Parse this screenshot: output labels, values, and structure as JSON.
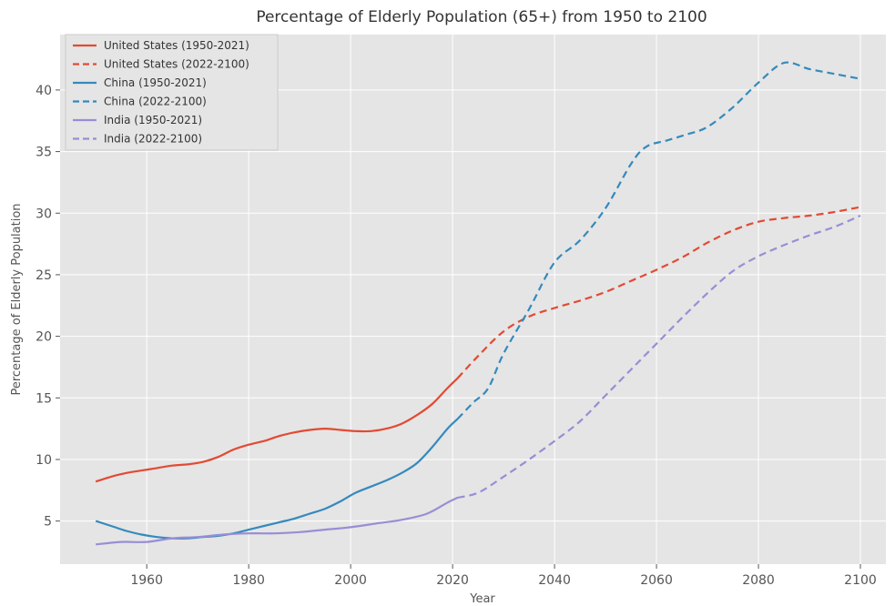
{
  "chart_data": {
    "type": "line",
    "title": "Percentage of Elderly Population (65+) from 1950 to 2100",
    "xlabel": "Year",
    "ylabel": "Percentage of Elderly Population",
    "xlim": [
      1943,
      2105
    ],
    "ylim": [
      1.5,
      44.5
    ],
    "xticks": [
      1960,
      1980,
      2000,
      2020,
      2040,
      2060,
      2080,
      2100
    ],
    "yticks": [
      5,
      10,
      15,
      20,
      25,
      30,
      35,
      40
    ],
    "grid": true,
    "legend_position": "top-left",
    "background": "#e5e5e5",
    "series": [
      {
        "name": "United States (1950-2021)",
        "color": "#e24a33",
        "style": "solid",
        "x": [
          1950,
          1953,
          1956,
          1959,
          1962,
          1965,
          1968,
          1971,
          1974,
          1977,
          1980,
          1983,
          1986,
          1989,
          1992,
          1995,
          1998,
          2001,
          2004,
          2007,
          2010,
          2013,
          2016,
          2019,
          2021
        ],
        "y": [
          8.2,
          8.6,
          8.9,
          9.1,
          9.3,
          9.5,
          9.6,
          9.8,
          10.2,
          10.8,
          11.2,
          11.5,
          11.9,
          12.2,
          12.4,
          12.5,
          12.4,
          12.3,
          12.3,
          12.5,
          12.9,
          13.6,
          14.5,
          15.8,
          16.6
        ]
      },
      {
        "name": "United States (2022-2100)",
        "color": "#e24a33",
        "style": "dashed",
        "x": [
          2021,
          2025,
          2030,
          2035,
          2040,
          2045,
          2050,
          2055,
          2060,
          2065,
          2070,
          2075,
          2080,
          2085,
          2090,
          2095,
          2100
        ],
        "y": [
          16.6,
          18.4,
          20.4,
          21.6,
          22.3,
          22.9,
          23.6,
          24.5,
          25.4,
          26.4,
          27.6,
          28.6,
          29.3,
          29.6,
          29.8,
          30.1,
          30.5
        ]
      },
      {
        "name": "China (1950-2021)",
        "color": "#348abd",
        "style": "solid",
        "x": [
          1950,
          1953,
          1956,
          1959,
          1962,
          1965,
          1968,
          1971,
          1974,
          1977,
          1980,
          1983,
          1986,
          1989,
          1992,
          1995,
          1998,
          2001,
          2004,
          2007,
          2010,
          2013,
          2016,
          2019,
          2021
        ],
        "y": [
          5.0,
          4.6,
          4.2,
          3.9,
          3.7,
          3.6,
          3.6,
          3.7,
          3.8,
          4.0,
          4.3,
          4.6,
          4.9,
          5.2,
          5.6,
          6.0,
          6.6,
          7.3,
          7.8,
          8.3,
          8.9,
          9.7,
          11.0,
          12.5,
          13.3
        ]
      },
      {
        "name": "China (2022-2100)",
        "color": "#348abd",
        "style": "dashed",
        "x": [
          2021,
          2024,
          2027,
          2030,
          2035,
          2040,
          2045,
          2050,
          2055,
          2058,
          2062,
          2066,
          2070,
          2075,
          2080,
          2085,
          2090,
          2095,
          2100
        ],
        "y": [
          13.3,
          14.6,
          15.8,
          18.6,
          22.2,
          26.0,
          27.8,
          30.4,
          34.0,
          35.4,
          35.9,
          36.4,
          37.0,
          38.6,
          40.6,
          42.2,
          41.7,
          41.3,
          40.9
        ]
      },
      {
        "name": "India (1950-2021)",
        "color": "#988ed5",
        "style": "solid",
        "x": [
          1950,
          1955,
          1960,
          1965,
          1970,
          1975,
          1980,
          1985,
          1990,
          1995,
          2000,
          2005,
          2010,
          2015,
          2019,
          2021
        ],
        "y": [
          3.1,
          3.3,
          3.3,
          3.6,
          3.7,
          3.9,
          4.0,
          4.0,
          4.1,
          4.3,
          4.5,
          4.8,
          5.1,
          5.6,
          6.5,
          6.9
        ]
      },
      {
        "name": "India (2022-2100)",
        "color": "#988ed5",
        "style": "dashed",
        "x": [
          2021,
          2025,
          2030,
          2035,
          2040,
          2045,
          2050,
          2055,
          2060,
          2065,
          2070,
          2075,
          2080,
          2085,
          2090,
          2095,
          2100
        ],
        "y": [
          6.9,
          7.3,
          8.6,
          10.0,
          11.5,
          13.1,
          15.2,
          17.3,
          19.4,
          21.5,
          23.5,
          25.3,
          26.5,
          27.4,
          28.2,
          28.9,
          29.8
        ]
      }
    ]
  }
}
